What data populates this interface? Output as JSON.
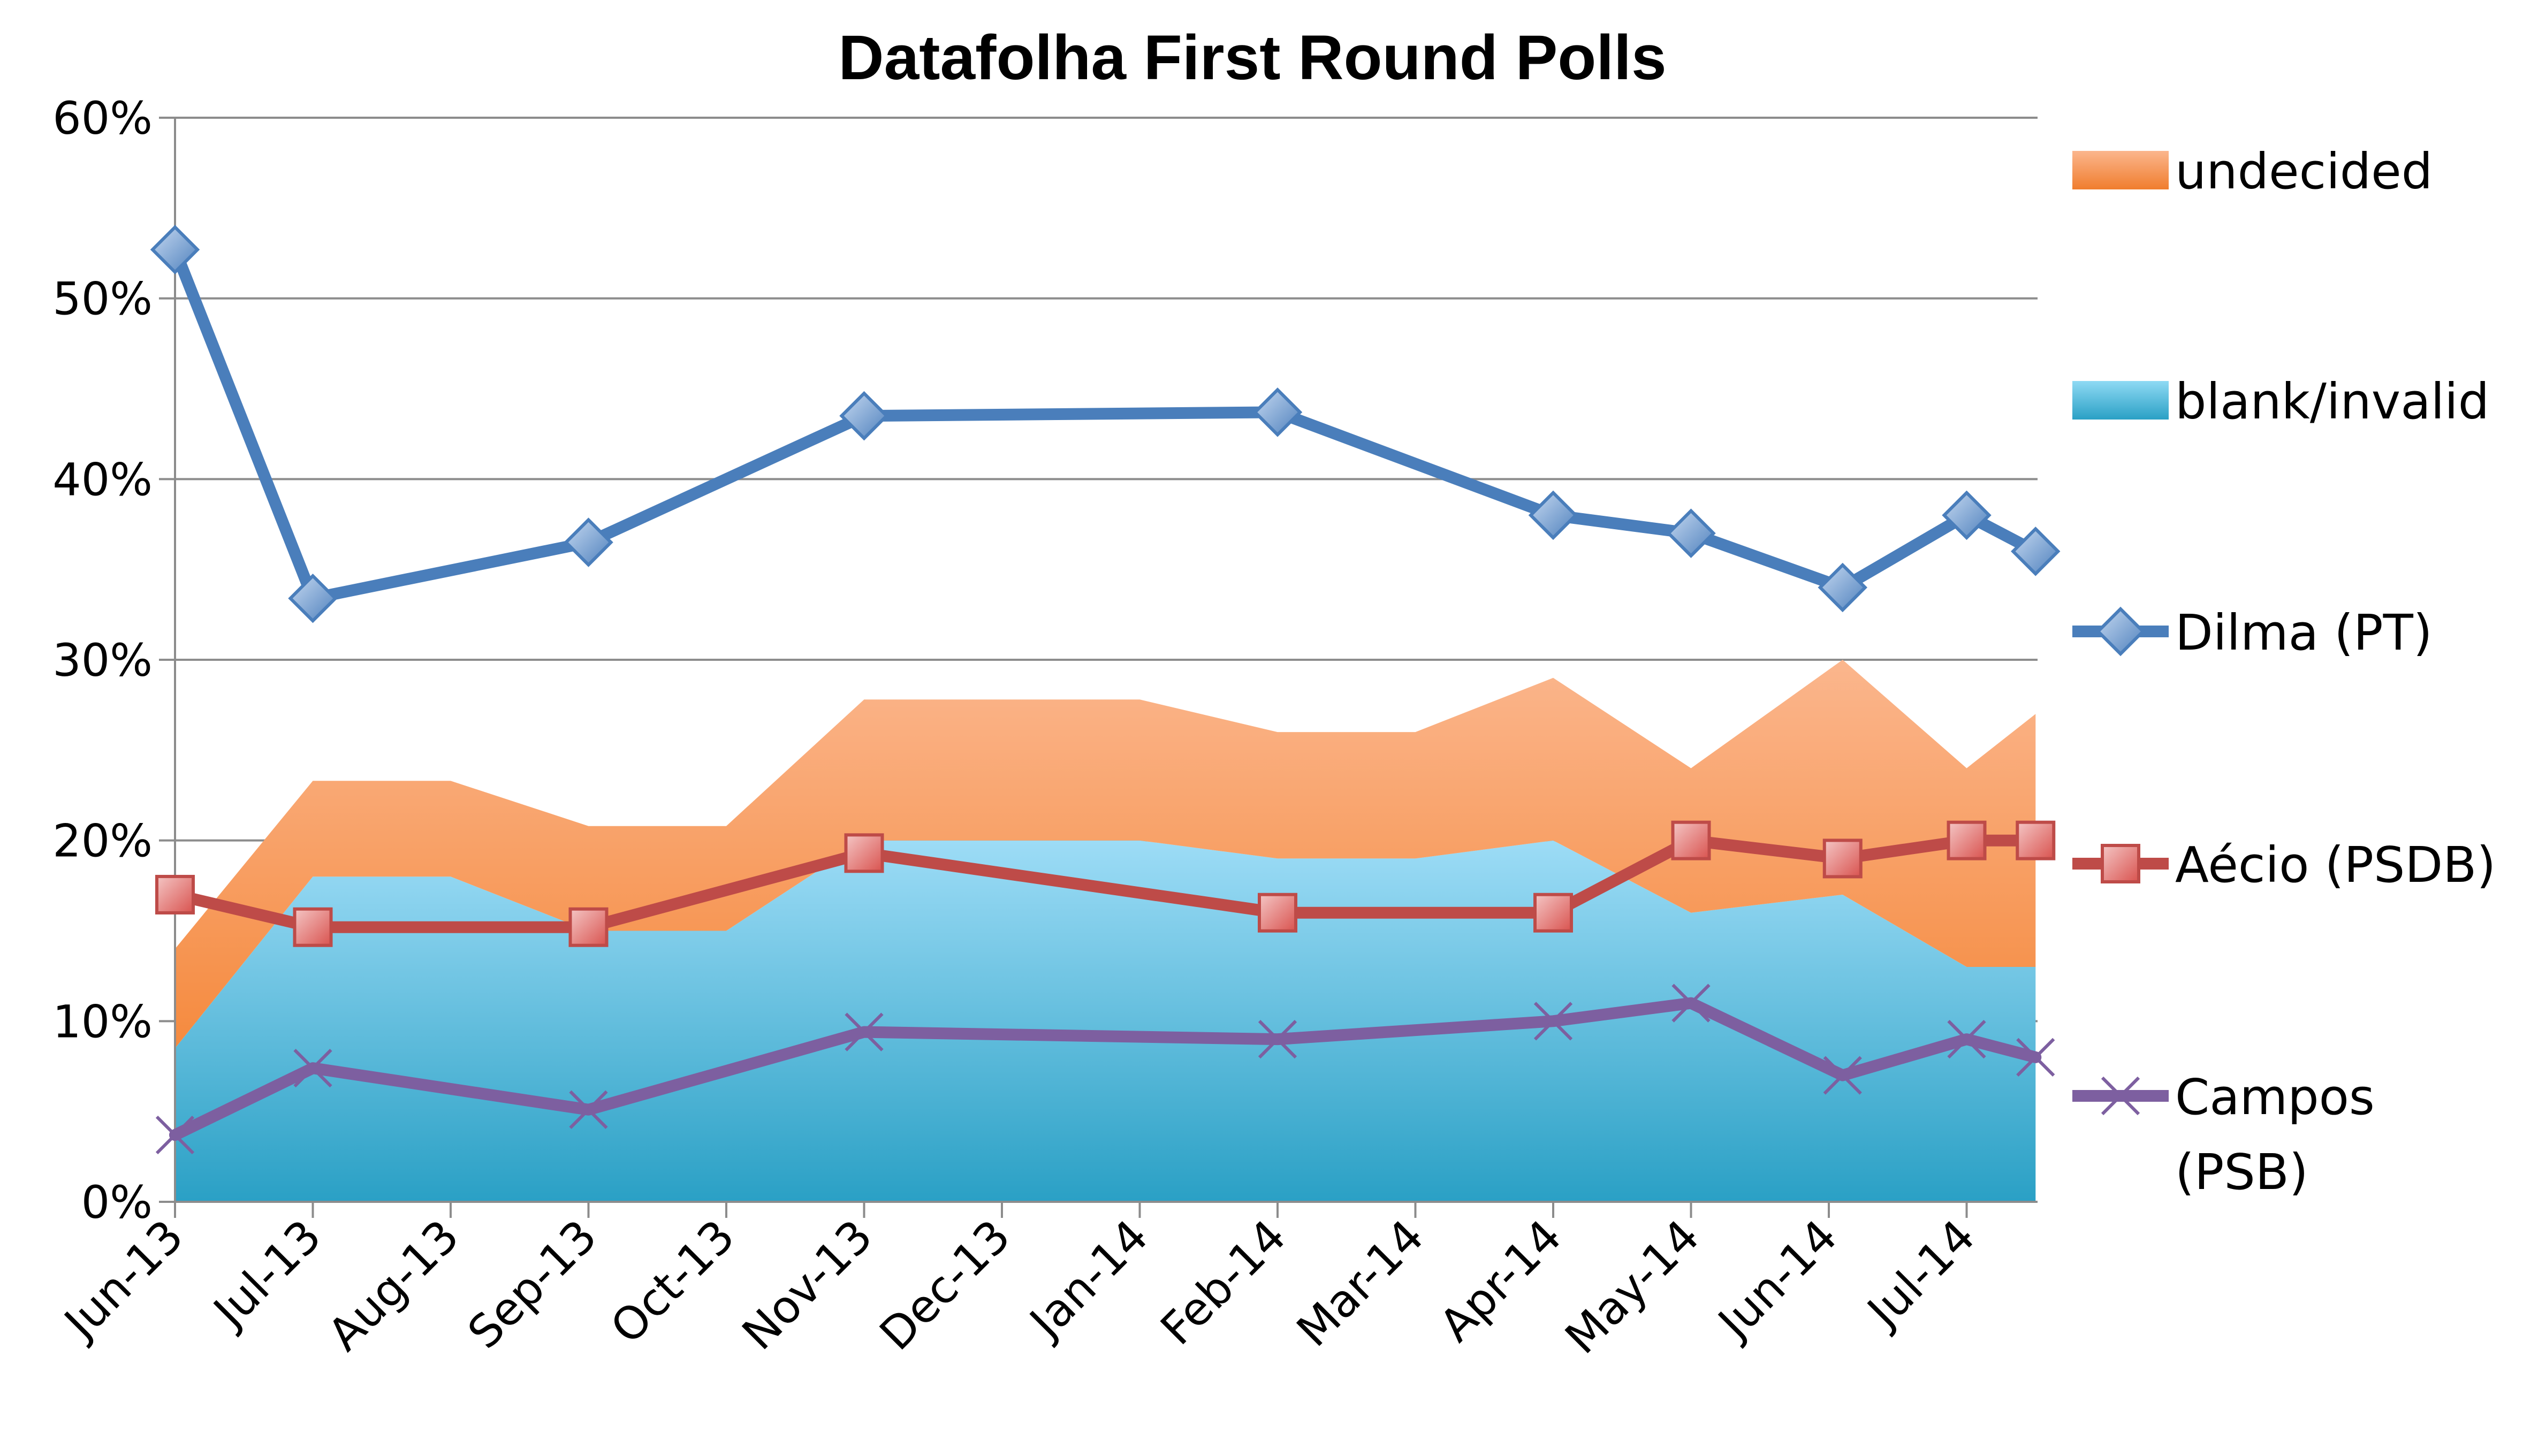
{
  "chart_data": {
    "type": "line",
    "title": "Datafolha First Round Polls",
    "xlabel": "",
    "ylabel": "",
    "ylim": [
      0,
      60
    ],
    "y_ticks": [
      "0%",
      "10%",
      "20%",
      "30%",
      "40%",
      "50%",
      "60%"
    ],
    "x_ticks": [
      "Jun-13",
      "Jul-13",
      "Aug-13",
      "Sep-13",
      "Oct-13",
      "Nov-13",
      "Dec-13",
      "Jan-14",
      "Feb-14",
      "Mar-14",
      "Apr-14",
      "May-14",
      "Jun-14",
      "Jul-14"
    ],
    "x_range": [
      0,
      13.5
    ],
    "grid": true,
    "legend_position": "right",
    "stacked_areas": [
      {
        "name": "blank/invalid",
        "color": "#4fb8dc",
        "x": [
          0,
          1,
          2,
          3,
          4,
          5,
          6,
          7,
          8,
          9,
          10,
          11,
          12.1,
          13,
          13.5
        ],
        "values": [
          8.5,
          18,
          18,
          15,
          15,
          20,
          20,
          20,
          19,
          19,
          20,
          16,
          17,
          13,
          13
        ]
      },
      {
        "name": "undecided",
        "color": "#f79646",
        "x": [
          0,
          1,
          2,
          3,
          4,
          5,
          6,
          7,
          8,
          9,
          10,
          11,
          12.1,
          13,
          13.5
        ],
        "values": [
          5.5,
          5.3,
          5.3,
          5.8,
          5.8,
          7.8,
          7.8,
          7.8,
          7,
          7,
          9,
          8,
          13,
          11,
          14
        ]
      }
    ],
    "series": [
      {
        "name": "Dilma (PT)",
        "color": "#4a7ebb",
        "marker": "diamond",
        "x": [
          0,
          1,
          3,
          5,
          8,
          10,
          11,
          12.1,
          13,
          13.5
        ],
        "values": [
          52.7,
          33.4,
          36.5,
          43.5,
          43.7,
          38,
          37,
          34,
          38,
          36
        ]
      },
      {
        "name": "Aécio (PSDB)",
        "color": "#be4b48",
        "marker": "square",
        "x": [
          0,
          1,
          3,
          5,
          8,
          10,
          11,
          12.1,
          13,
          13.5
        ],
        "values": [
          17,
          15.2,
          15.2,
          19.3,
          16,
          16,
          20,
          19,
          20,
          20
        ]
      },
      {
        "name": "Campos (PSB)",
        "color": "#7d5fa0",
        "marker": "x",
        "x": [
          0,
          1,
          3,
          5,
          8,
          10,
          11,
          12.1,
          13,
          13.5
        ],
        "values": [
          3.7,
          7.4,
          5.1,
          9.4,
          9,
          10,
          11,
          7,
          9,
          8
        ]
      }
    ],
    "legend": [
      {
        "label": "undecided",
        "kind": "area"
      },
      {
        "label": "blank/invalid",
        "kind": "area"
      },
      {
        "label": "Dilma (PT)",
        "kind": "line"
      },
      {
        "label": "Aécio (PSDB)",
        "kind": "line"
      },
      {
        "label": "Campos",
        "label2": "(PSB)",
        "kind": "line"
      }
    ]
  }
}
